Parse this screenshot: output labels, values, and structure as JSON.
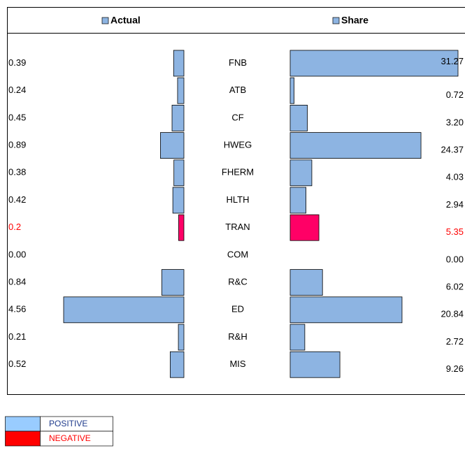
{
  "chart_data": {
    "type": "butterfly",
    "categories": [
      "FNB",
      "ATB",
      "CF",
      "HWEG",
      "FHERM",
      "HLTH",
      "TRAN",
      "COM",
      "R&C",
      "ED",
      "R&H",
      "MIS"
    ],
    "series": [
      {
        "name": "Actual",
        "color": "#8db4e2",
        "values": [
          0.39,
          0.24,
          0.45,
          0.89,
          0.38,
          0.42,
          0.2,
          0,
          0.84,
          4.56,
          0.21,
          0.52
        ],
        "value_labels": [
          "0.39",
          "0.24",
          "0.45",
          "0.89",
          "0.38",
          "0.42",
          "0.2",
          "0.00",
          "0.84",
          "4.56",
          "0.21",
          "0.52"
        ],
        "colors": [
          "#8db4e2",
          "#8db4e2",
          "#8db4e2",
          "#8db4e2",
          "#8db4e2",
          "#8db4e2",
          "#ff0066",
          "#8db4e2",
          "#8db4e2",
          "#8db4e2",
          "#8db4e2",
          "#8db4e2"
        ]
      },
      {
        "name": "Share",
        "color": "#8db4e2",
        "values": [
          31.27,
          0.72,
          3.2,
          24.37,
          4.03,
          2.94,
          5.35,
          0,
          6.02,
          20.84,
          2.72,
          9.26
        ],
        "value_labels": [
          "31.27",
          "0.72",
          "3.20",
          "24.37",
          "4.03",
          "2.94",
          "5.35",
          "0.00",
          "6.02",
          "20.84",
          "2.72",
          "9.26"
        ],
        "colors": [
          "#8db4e2",
          "#8db4e2",
          "#8db4e2",
          "#8db4e2",
          "#8db4e2",
          "#8db4e2",
          "#ff0066",
          "#8db4e2",
          "#8db4e2",
          "#8db4e2",
          "#8db4e2",
          "#8db4e2"
        ]
      }
    ],
    "legend": [
      {
        "label": "POSITIVE",
        "color": "#99ccff"
      },
      {
        "label": "NEGATIVE",
        "color": "#ff0000"
      }
    ]
  }
}
